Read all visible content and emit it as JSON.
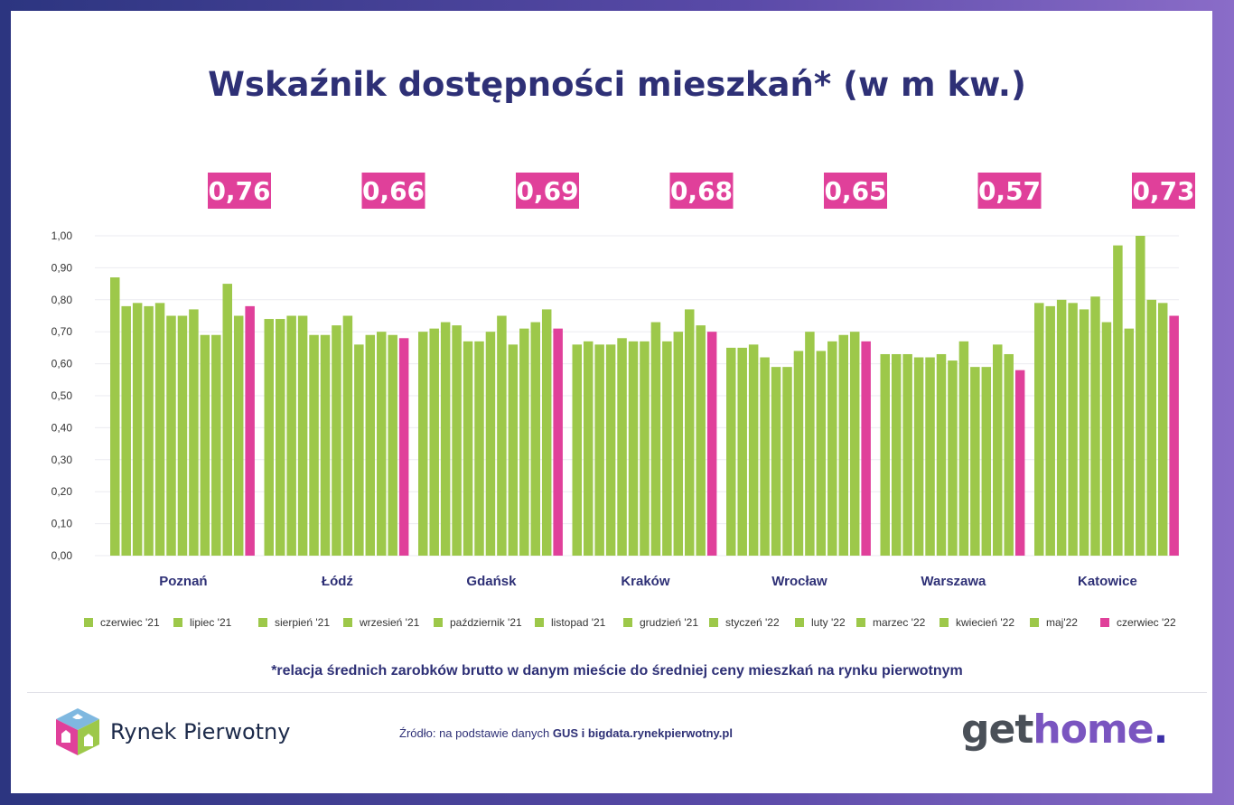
{
  "chart_data": {
    "type": "bar",
    "title": "Wskaźnik dostępności mieszkań* (w m kw.)",
    "xlabel": "",
    "ylabel": "",
    "ylim": [
      0,
      1
    ],
    "yticks": [
      "0,00",
      "0,10",
      "0,20",
      "0,30",
      "0,40",
      "0,50",
      "0,60",
      "0,70",
      "0,80",
      "0,90",
      "1,00"
    ],
    "grid": true,
    "legend_position": "bottom",
    "categories": [
      "Poznań",
      "Łódź",
      "Gdańsk",
      "Kraków",
      "Wrocław",
      "Warszawa",
      "Katowice"
    ],
    "highlight_labels": [
      "0,76",
      "0,66",
      "0,69",
      "0,68",
      "0,65",
      "0,57",
      "0,73"
    ],
    "series": [
      {
        "name": "czerwiec '21",
        "values": [
          0.87,
          0.74,
          0.7,
          0.66,
          0.65,
          0.63,
          0.79
        ]
      },
      {
        "name": "lipiec '21",
        "values": [
          0.78,
          0.74,
          0.71,
          0.67,
          0.65,
          0.63,
          0.78
        ]
      },
      {
        "name": "sierpień '21",
        "values": [
          0.79,
          0.75,
          0.73,
          0.66,
          0.66,
          0.63,
          0.8
        ]
      },
      {
        "name": "wrzesień '21",
        "values": [
          0.78,
          0.75,
          0.72,
          0.66,
          0.62,
          0.62,
          0.79
        ]
      },
      {
        "name": "październik '21",
        "values": [
          0.79,
          0.69,
          0.67,
          0.68,
          0.59,
          0.62,
          0.77
        ]
      },
      {
        "name": "listopad '21",
        "values": [
          0.75,
          0.69,
          0.67,
          0.67,
          0.59,
          0.63,
          0.81
        ]
      },
      {
        "name": "grudzień '21",
        "values": [
          0.75,
          0.72,
          0.7,
          0.67,
          0.64,
          0.61,
          0.73
        ]
      },
      {
        "name": "styczeń '22",
        "values": [
          0.77,
          0.75,
          0.75,
          0.73,
          0.7,
          0.67,
          0.97
        ]
      },
      {
        "name": "luty '22",
        "values": [
          0.69,
          0.66,
          0.66,
          0.67,
          0.64,
          0.59,
          0.71
        ]
      },
      {
        "name": "marzec '22",
        "values": [
          0.69,
          0.69,
          0.71,
          0.7,
          0.67,
          0.59,
          1.0
        ]
      },
      {
        "name": "kwiecień '22",
        "values": [
          0.85,
          0.7,
          0.73,
          0.77,
          0.69,
          0.66,
          0.8
        ]
      },
      {
        "name": "maj'22",
        "values": [
          0.75,
          0.69,
          0.77,
          0.72,
          0.7,
          0.63,
          0.79
        ]
      },
      {
        "name": "czerwiec '22",
        "values": [
          0.78,
          0.68,
          0.71,
          0.7,
          0.67,
          0.58,
          0.75
        ]
      }
    ],
    "colors": {
      "green": "#9dc84a",
      "pink": "#e0409a"
    }
  },
  "footnote": "*relacja średnich zarobków brutto w danym mieście do średniej ceny mieszkań na rynku pierwotnym",
  "footer": {
    "logo_text": "Rynek Pierwotny",
    "source_prefix": "Źródło: na podstawie danych ",
    "source_bold": "GUS i bigdata.rynekpierwotny.pl",
    "brand_get": "get",
    "brand_home": "home",
    "brand_dot": "."
  }
}
